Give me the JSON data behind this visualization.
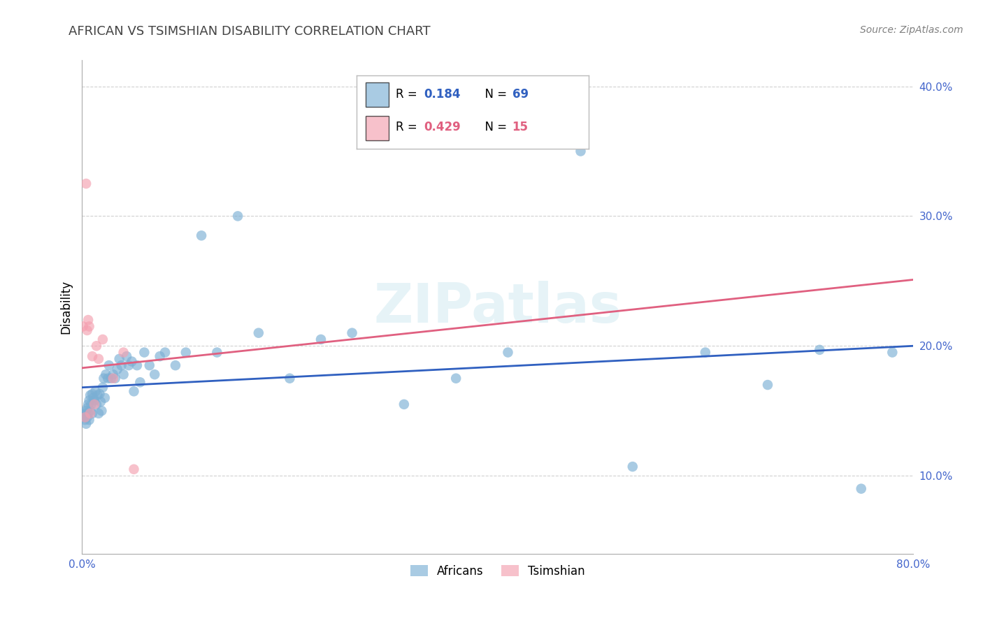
{
  "title": "AFRICAN VS TSIMSHIAN DISABILITY CORRELATION CHART",
  "source": "Source: ZipAtlas.com",
  "ylabel": "Disability",
  "watermark": "ZIPatlas",
  "xlim": [
    0.0,
    0.8
  ],
  "ylim": [
    0.04,
    0.42
  ],
  "xticks": [
    0.0,
    0.1,
    0.2,
    0.3,
    0.4,
    0.5,
    0.6,
    0.7,
    0.8
  ],
  "yticks": [
    0.1,
    0.2,
    0.3,
    0.4
  ],
  "xtick_labels": [
    "0.0%",
    "",
    "",
    "",
    "",
    "",
    "",
    "",
    "80.0%"
  ],
  "ytick_labels": [
    "10.0%",
    "20.0%",
    "30.0%",
    "40.0%"
  ],
  "african_R": 0.184,
  "african_N": 69,
  "tsimshian_R": 0.429,
  "tsimshian_N": 15,
  "african_color": "#7bafd4",
  "tsimshian_color": "#f4a0b0",
  "african_line_color": "#3060c0",
  "tsimshian_line_color": "#e06080",
  "african_x": [
    0.001,
    0.002,
    0.003,
    0.003,
    0.004,
    0.004,
    0.005,
    0.005,
    0.006,
    0.006,
    0.007,
    0.007,
    0.008,
    0.008,
    0.009,
    0.01,
    0.01,
    0.011,
    0.012,
    0.013,
    0.014,
    0.015,
    0.016,
    0.017,
    0.018,
    0.019,
    0.02,
    0.021,
    0.022,
    0.023,
    0.025,
    0.026,
    0.028,
    0.03,
    0.032,
    0.034,
    0.036,
    0.038,
    0.04,
    0.043,
    0.045,
    0.048,
    0.05,
    0.053,
    0.056,
    0.06,
    0.065,
    0.07,
    0.075,
    0.08,
    0.09,
    0.1,
    0.115,
    0.13,
    0.15,
    0.17,
    0.2,
    0.23,
    0.26,
    0.31,
    0.36,
    0.41,
    0.48,
    0.53,
    0.6,
    0.66,
    0.71,
    0.75,
    0.78
  ],
  "african_y": [
    0.147,
    0.145,
    0.148,
    0.143,
    0.15,
    0.14,
    0.152,
    0.145,
    0.155,
    0.148,
    0.158,
    0.143,
    0.162,
    0.15,
    0.155,
    0.148,
    0.163,
    0.16,
    0.158,
    0.165,
    0.155,
    0.162,
    0.148,
    0.163,
    0.157,
    0.15,
    0.168,
    0.175,
    0.16,
    0.178,
    0.175,
    0.185,
    0.175,
    0.178,
    0.175,
    0.182,
    0.19,
    0.185,
    0.178,
    0.192,
    0.185,
    0.188,
    0.165,
    0.185,
    0.172,
    0.195,
    0.185,
    0.178,
    0.192,
    0.195,
    0.185,
    0.195,
    0.285,
    0.195,
    0.3,
    0.21,
    0.175,
    0.205,
    0.21,
    0.155,
    0.175,
    0.195,
    0.35,
    0.107,
    0.195,
    0.17,
    0.197,
    0.09,
    0.195
  ],
  "tsimshian_x": [
    0.001,
    0.003,
    0.004,
    0.005,
    0.006,
    0.007,
    0.008,
    0.01,
    0.012,
    0.014,
    0.016,
    0.02,
    0.03,
    0.04,
    0.05
  ],
  "tsimshian_y": [
    0.215,
    0.145,
    0.325,
    0.212,
    0.22,
    0.215,
    0.148,
    0.192,
    0.155,
    0.2,
    0.19,
    0.205,
    0.175,
    0.195,
    0.105
  ],
  "african_intercept": 0.168,
  "african_slope": 0.04,
  "tsimshian_intercept": 0.183,
  "tsimshian_slope": 0.085,
  "background_color": "#ffffff",
  "grid_color": "#cccccc",
  "title_color": "#444444",
  "tick_label_color": "#4466cc"
}
